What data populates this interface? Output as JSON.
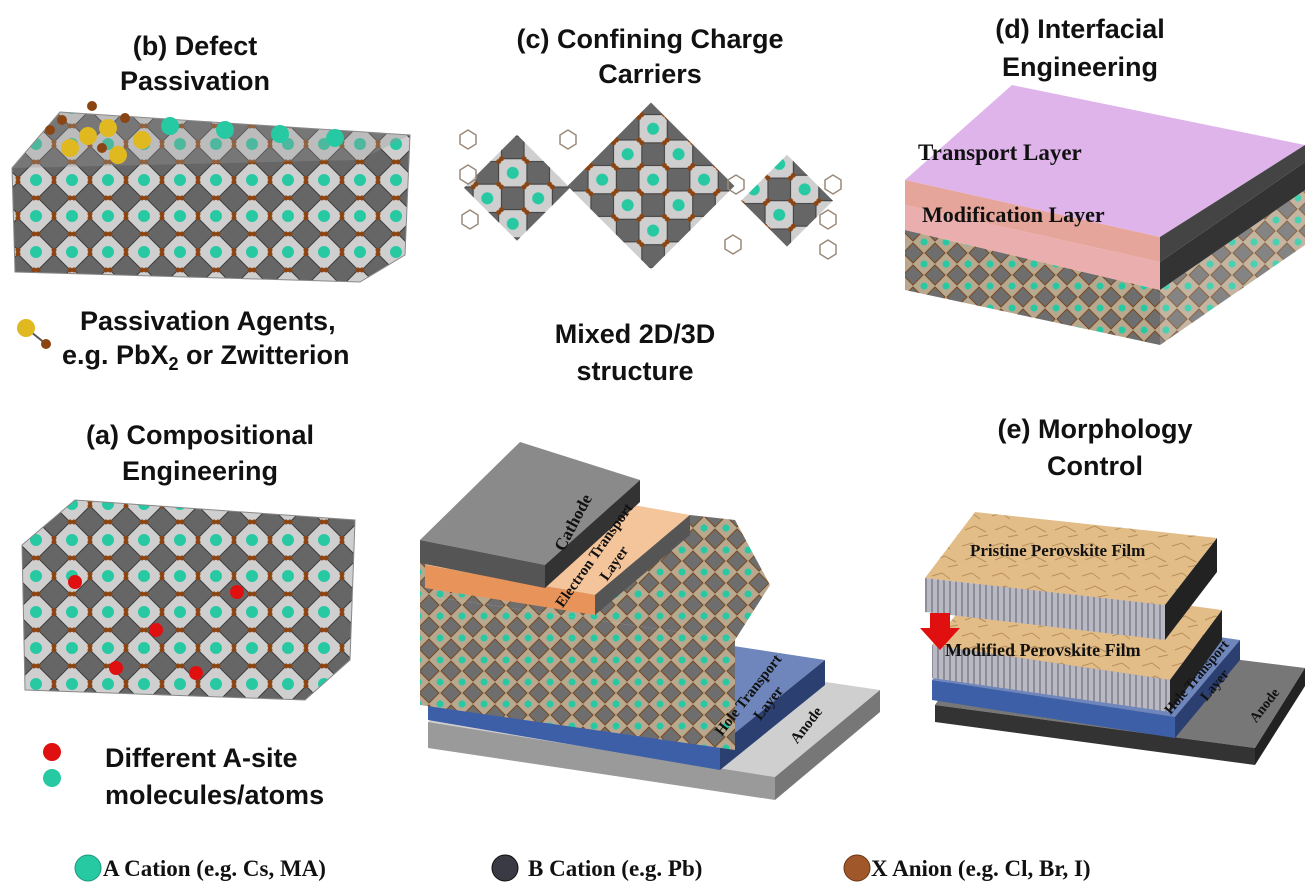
{
  "panels": {
    "b": {
      "title": [
        "(b) Defect",
        "Passivation"
      ],
      "caption": [
        "Passivation Agents,",
        [
          "e.g. PbX",
          "2",
          " or Zwitterion"
        ]
      ]
    },
    "c": {
      "title": [
        "(c) Confining Charge",
        "Carriers"
      ],
      "caption": [
        "Mixed 2D/3D",
        "structure"
      ]
    },
    "d": {
      "title": [
        "(d) Interfacial",
        "Engineering"
      ],
      "layers": [
        "Transport Layer",
        "Modification Layer"
      ]
    },
    "a": {
      "title": [
        "(a) Compositional",
        "Engineering"
      ],
      "caption": [
        "Different A-site",
        "molecules/atoms"
      ]
    },
    "device": {
      "layers": [
        [
          "Cathode"
        ],
        [
          "Electron Transport",
          "Layer"
        ],
        [
          "Hole Transport",
          "Layer"
        ],
        [
          "Anode"
        ]
      ]
    },
    "e": {
      "title": [
        "(e) Morphology",
        "Control"
      ],
      "layers": [
        "Pristine Perovskite Film",
        "Modified Perovskite Film",
        [
          "Hole Transport",
          "Layer"
        ],
        "Anode"
      ]
    }
  },
  "legend": [
    "A Cation (e.g. Cs, MA)",
    "B Cation (e.g. Pb)",
    "X Anion (e.g. Cl, Br, I)"
  ]
}
